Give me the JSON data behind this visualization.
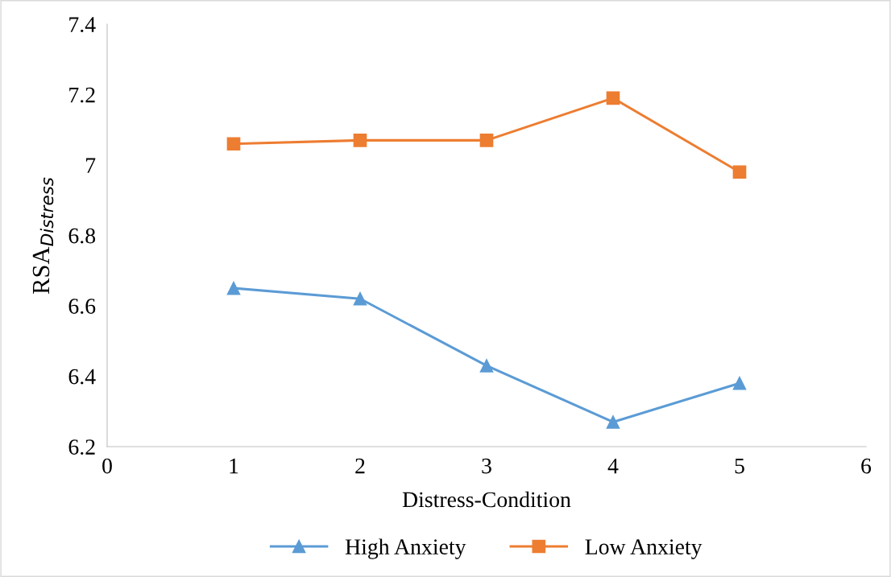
{
  "chart_data": {
    "type": "line",
    "xlabel": "Distress-Condition",
    "ylabel": "RSA$_{Distress}$",
    "x": [
      1,
      2,
      3,
      4,
      5
    ],
    "series": [
      {
        "name": "High Anxiety",
        "color": "#5b9bd5",
        "values": [
          6.65,
          6.62,
          6.43,
          6.27,
          6.38
        ],
        "marker": "triangle"
      },
      {
        "name": "Low Anxiety",
        "color": "#ed7d31",
        "values": [
          7.06,
          7.07,
          7.07,
          7.19,
          6.98
        ],
        "marker": "square"
      }
    ],
    "xlim": [
      0,
      6
    ],
    "xticks": [
      0,
      1,
      2,
      3,
      4,
      5,
      6
    ],
    "ylim": [
      6.2,
      7.4
    ],
    "yticks": [
      {
        "value": 6.2,
        "label": "6.2"
      },
      {
        "value": 6.4,
        "label": "6.4"
      },
      {
        "value": 6.6,
        "label": "6.6"
      },
      {
        "value": 6.8,
        "label": "6.8"
      },
      {
        "value": 7.0,
        "label": "7"
      },
      {
        "value": 7.2,
        "label": "7.2"
      },
      {
        "value": 7.4,
        "label": "7.4"
      }
    ],
    "grid": false,
    "legend": "bottom",
    "line_style": "solid"
  }
}
